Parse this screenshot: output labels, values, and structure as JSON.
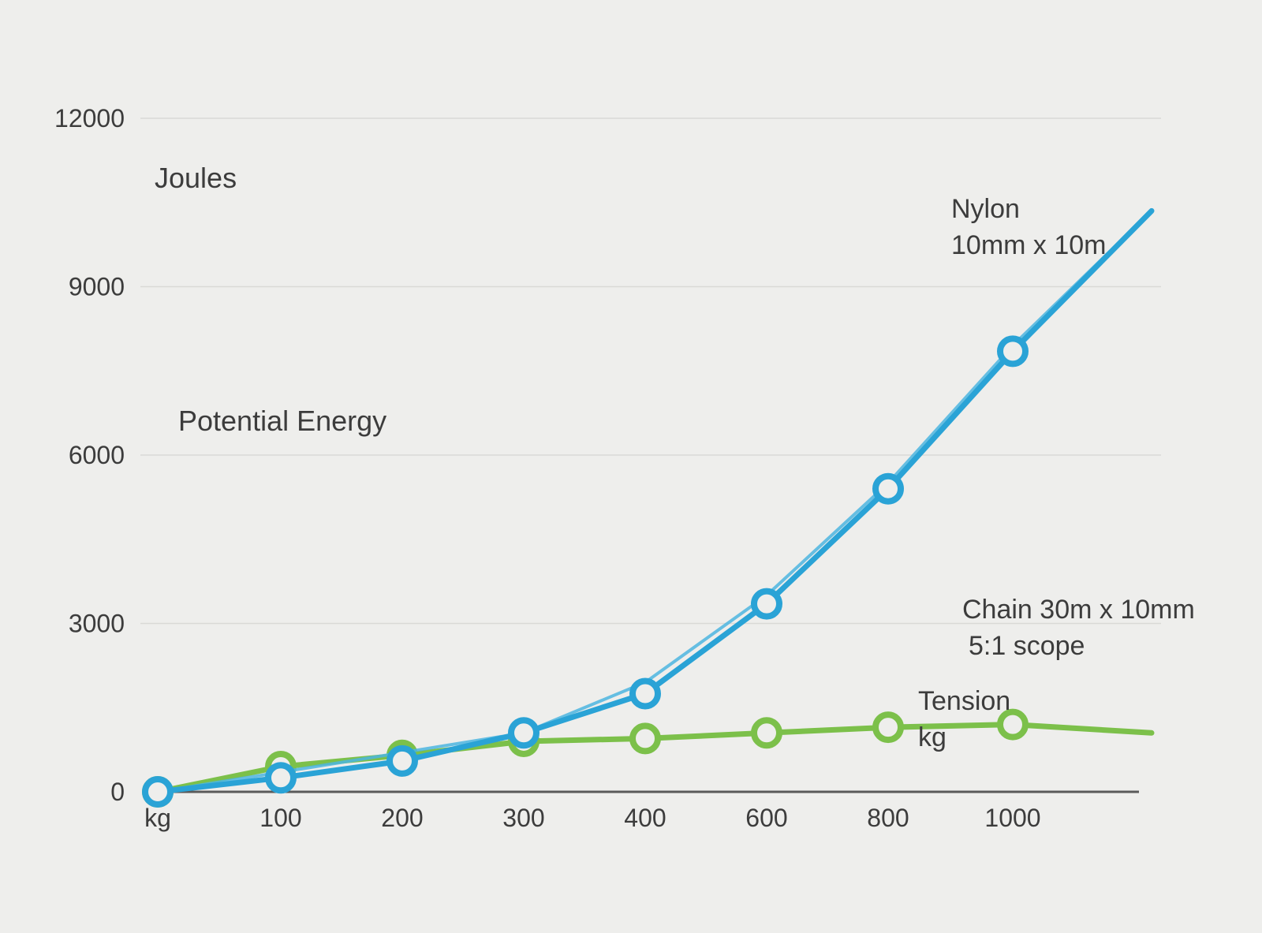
{
  "chart_data": {
    "type": "line",
    "title": "Potential Energy",
    "ylabel": "Joules",
    "xlabel": "kg",
    "categories": [
      "kg",
      "100",
      "200",
      "300",
      "400",
      "600",
      "800",
      "1000"
    ],
    "x": [
      0,
      100,
      200,
      300,
      400,
      600,
      800,
      1000
    ],
    "ylim": [
      0,
      12000
    ],
    "yticks": [
      "0",
      "3000",
      "6000",
      "9000",
      "12000"
    ],
    "grid": true,
    "series": [
      {
        "name_lines": [
          "Nylon",
          "10mm x 10m"
        ],
        "color": "#2aa3d6",
        "values": [
          0,
          250,
          550,
          1050,
          1750,
          3350,
          5400,
          7850
        ],
        "extension_value": 10350
      },
      {
        "name_lines": [
          "Chain 30m x 10mm",
          "5:1 scope"
        ],
        "color": "#4cb5e0",
        "values": [
          0,
          350,
          700,
          1050,
          1950,
          3500,
          5500,
          7950
        ],
        "extension_value": 10350
      },
      {
        "name_lines": [
          "Tension",
          "kg"
        ],
        "color": "#7cc04a",
        "values": [
          0,
          450,
          650,
          900,
          950,
          1050,
          1150,
          1200
        ],
        "extension_value": 1050
      }
    ]
  }
}
